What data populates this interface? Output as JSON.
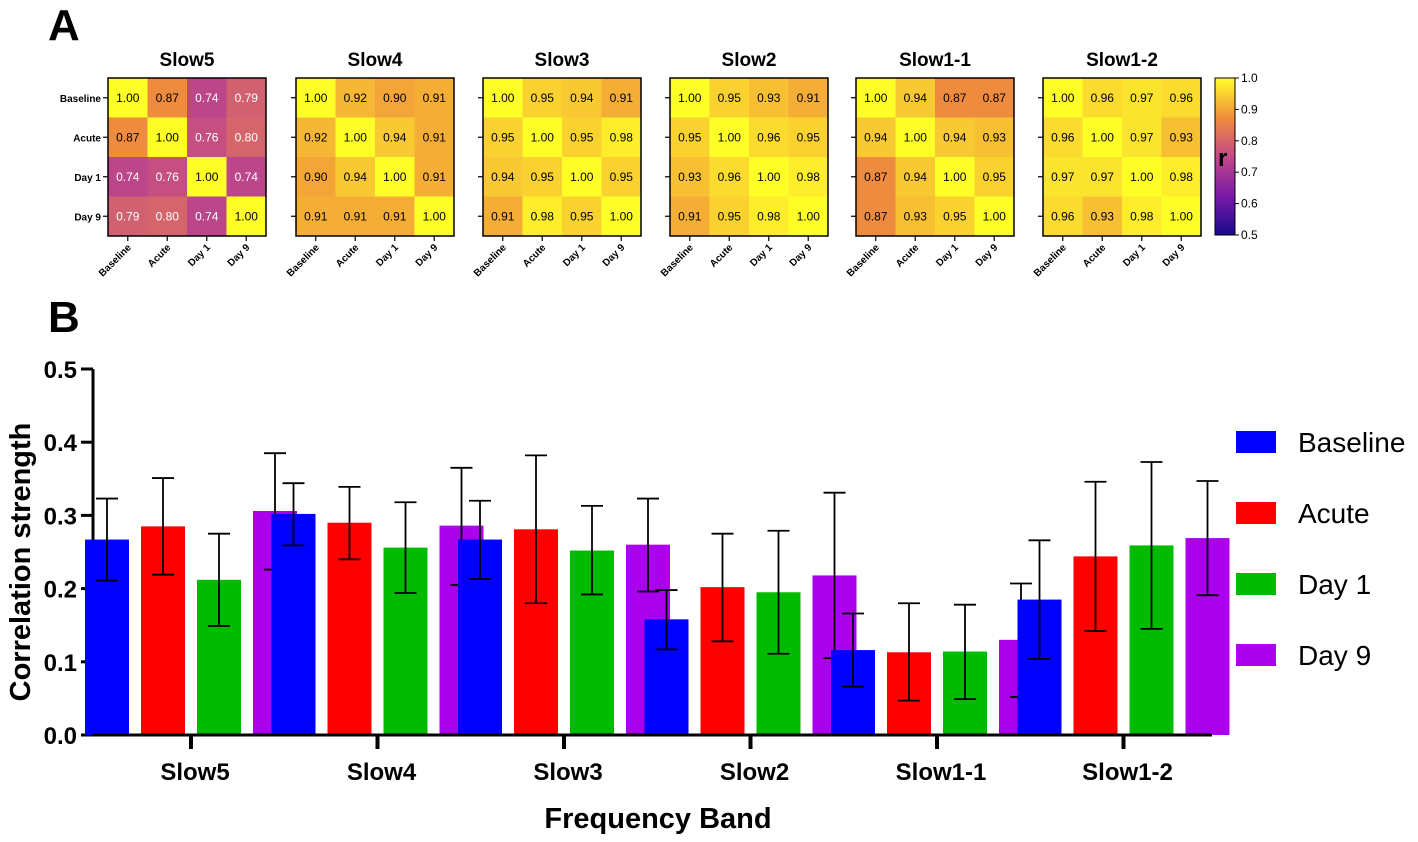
{
  "panels": {
    "a_label": "A",
    "b_label": "B"
  },
  "chart_data": [
    {
      "type": "heatmap",
      "panel": "A",
      "row_labels": [
        "Baseline",
        "Acute",
        "Day 1",
        "Day 9"
      ],
      "col_labels": [
        "Baseline",
        "Acute",
        "Day 1",
        "Day 9"
      ],
      "value_range": [
        0.5,
        1.0
      ],
      "colorbar": {
        "label": "r",
        "ticks": [
          "1.0",
          "0.9",
          "0.8",
          "0.7",
          "0.6",
          "0.5"
        ]
      },
      "matrices": [
        {
          "title": "Slow5",
          "values": [
            [
              1.0,
              0.87,
              0.74,
              0.79
            ],
            [
              0.87,
              1.0,
              0.76,
              0.8
            ],
            [
              0.74,
              0.76,
              1.0,
              0.74
            ],
            [
              0.79,
              0.8,
              0.74,
              1.0
            ]
          ]
        },
        {
          "title": "Slow4",
          "values": [
            [
              1.0,
              0.92,
              0.9,
              0.91
            ],
            [
              0.92,
              1.0,
              0.94,
              0.91
            ],
            [
              0.9,
              0.94,
              1.0,
              0.91
            ],
            [
              0.91,
              0.91,
              0.91,
              1.0
            ]
          ]
        },
        {
          "title": "Slow3",
          "values": [
            [
              1.0,
              0.95,
              0.94,
              0.91
            ],
            [
              0.95,
              1.0,
              0.95,
              0.98
            ],
            [
              0.94,
              0.95,
              1.0,
              0.95
            ],
            [
              0.91,
              0.98,
              0.95,
              1.0
            ]
          ]
        },
        {
          "title": "Slow2",
          "values": [
            [
              1.0,
              0.95,
              0.93,
              0.91
            ],
            [
              0.95,
              1.0,
              0.96,
              0.95
            ],
            [
              0.93,
              0.96,
              1.0,
              0.98
            ],
            [
              0.91,
              0.95,
              0.98,
              1.0
            ]
          ]
        },
        {
          "title": "Slow1-1",
          "values": [
            [
              1.0,
              0.94,
              0.87,
              0.87
            ],
            [
              0.94,
              1.0,
              0.94,
              0.93
            ],
            [
              0.87,
              0.94,
              1.0,
              0.95
            ],
            [
              0.87,
              0.93,
              0.95,
              1.0
            ]
          ]
        },
        {
          "title": "Slow1-2",
          "values": [
            [
              1.0,
              0.96,
              0.97,
              0.96
            ],
            [
              0.96,
              1.0,
              0.97,
              0.93
            ],
            [
              0.97,
              0.97,
              1.0,
              0.98
            ],
            [
              0.96,
              0.93,
              0.98,
              1.0
            ]
          ]
        }
      ]
    },
    {
      "type": "bar",
      "panel": "B",
      "categories": [
        "Slow5",
        "Slow4",
        "Slow3",
        "Slow2",
        "Slow1-1",
        "Slow1-2"
      ],
      "xlabel": "Frequency Band",
      "ylabel": "Correlation strength",
      "ylim": [
        0.0,
        0.5
      ],
      "yticks": [
        "0.0",
        "0.1",
        "0.2",
        "0.3",
        "0.4",
        "0.5"
      ],
      "series": [
        {
          "name": "Baseline",
          "color": "#0000ff",
          "values": [
            0.267,
            0.302,
            0.267,
            0.158,
            0.116,
            0.185
          ],
          "err_low": [
            0.211,
            0.259,
            0.213,
            0.117,
            0.066,
            0.104
          ],
          "err_high": [
            0.323,
            0.344,
            0.32,
            0.198,
            0.166,
            0.266
          ]
        },
        {
          "name": "Acute",
          "color": "#ff0000",
          "values": [
            0.285,
            0.29,
            0.281,
            0.202,
            0.113,
            0.244
          ],
          "err_low": [
            0.219,
            0.24,
            0.18,
            0.128,
            0.047,
            0.142
          ],
          "err_high": [
            0.351,
            0.339,
            0.382,
            0.275,
            0.18,
            0.346
          ]
        },
        {
          "name": "Day 1",
          "color": "#00bb00",
          "values": [
            0.212,
            0.256,
            0.252,
            0.195,
            0.114,
            0.259
          ],
          "err_low": [
            0.149,
            0.194,
            0.192,
            0.111,
            0.049,
            0.145
          ],
          "err_high": [
            0.275,
            0.318,
            0.313,
            0.279,
            0.178,
            0.373
          ]
        },
        {
          "name": "Day 9",
          "color": "#aa00ee",
          "values": [
            0.306,
            0.286,
            0.26,
            0.218,
            0.13,
            0.269
          ],
          "err_low": [
            0.226,
            0.205,
            0.196,
            0.105,
            0.052,
            0.191
          ],
          "err_high": [
            0.385,
            0.365,
            0.323,
            0.331,
            0.207,
            0.347
          ]
        }
      ]
    }
  ]
}
